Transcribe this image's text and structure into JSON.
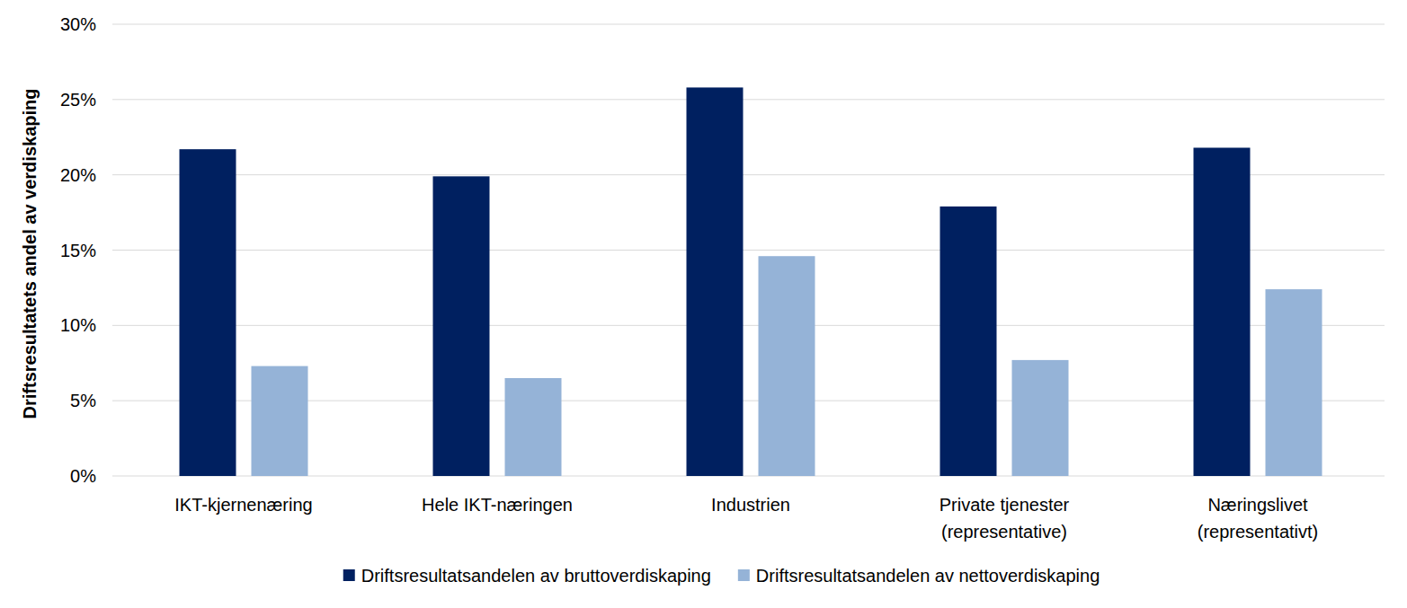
{
  "chart_data": {
    "type": "bar",
    "y_label": "Driftsresultatets andel av verdiskaping",
    "categories": [
      "IKT-kjernenæring",
      "Hele IKT-næringen",
      "Industrien",
      "Private tjenester\n(representative)",
      "Næringslivet\n(representativt)"
    ],
    "series": [
      {
        "name": "Driftsresultatsandelen av bruttoverdiskaping",
        "color": "#002060",
        "values": [
          21.7,
          19.9,
          25.8,
          17.9,
          21.8
        ]
      },
      {
        "name": "Driftsresultatsandelen av nettoverdiskaping",
        "color": "#95b3d7",
        "values": [
          7.3,
          6.5,
          14.6,
          7.7,
          12.4
        ]
      }
    ],
    "ylim": [
      0,
      30
    ],
    "yticks": [
      {
        "value": 0,
        "label": "0%"
      },
      {
        "value": 5,
        "label": "5%"
      },
      {
        "value": 10,
        "label": "10%"
      },
      {
        "value": 15,
        "label": "15%"
      },
      {
        "value": 20,
        "label": "20%"
      },
      {
        "value": 25,
        "label": "25%"
      },
      {
        "value": 30,
        "label": "30%"
      }
    ],
    "grid": true,
    "legend": "bottom"
  }
}
